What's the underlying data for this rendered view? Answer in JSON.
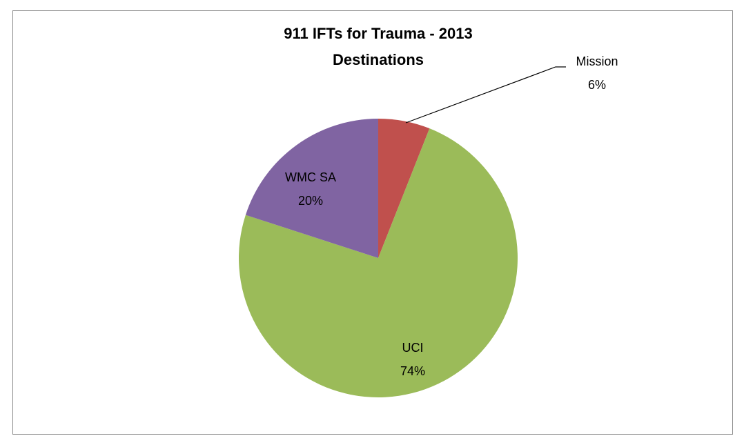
{
  "chart_data": {
    "type": "pie",
    "title": [
      "911 IFTs for Trauma - 2013",
      "Destinations"
    ],
    "categories": [
      "Mission",
      "UCI",
      "WMC SA"
    ],
    "values": [
      6,
      74,
      20
    ],
    "value_labels": [
      "6%",
      "74%",
      "20%"
    ],
    "colors": [
      "#c0504d",
      "#9bbb59",
      "#8064a2"
    ]
  }
}
